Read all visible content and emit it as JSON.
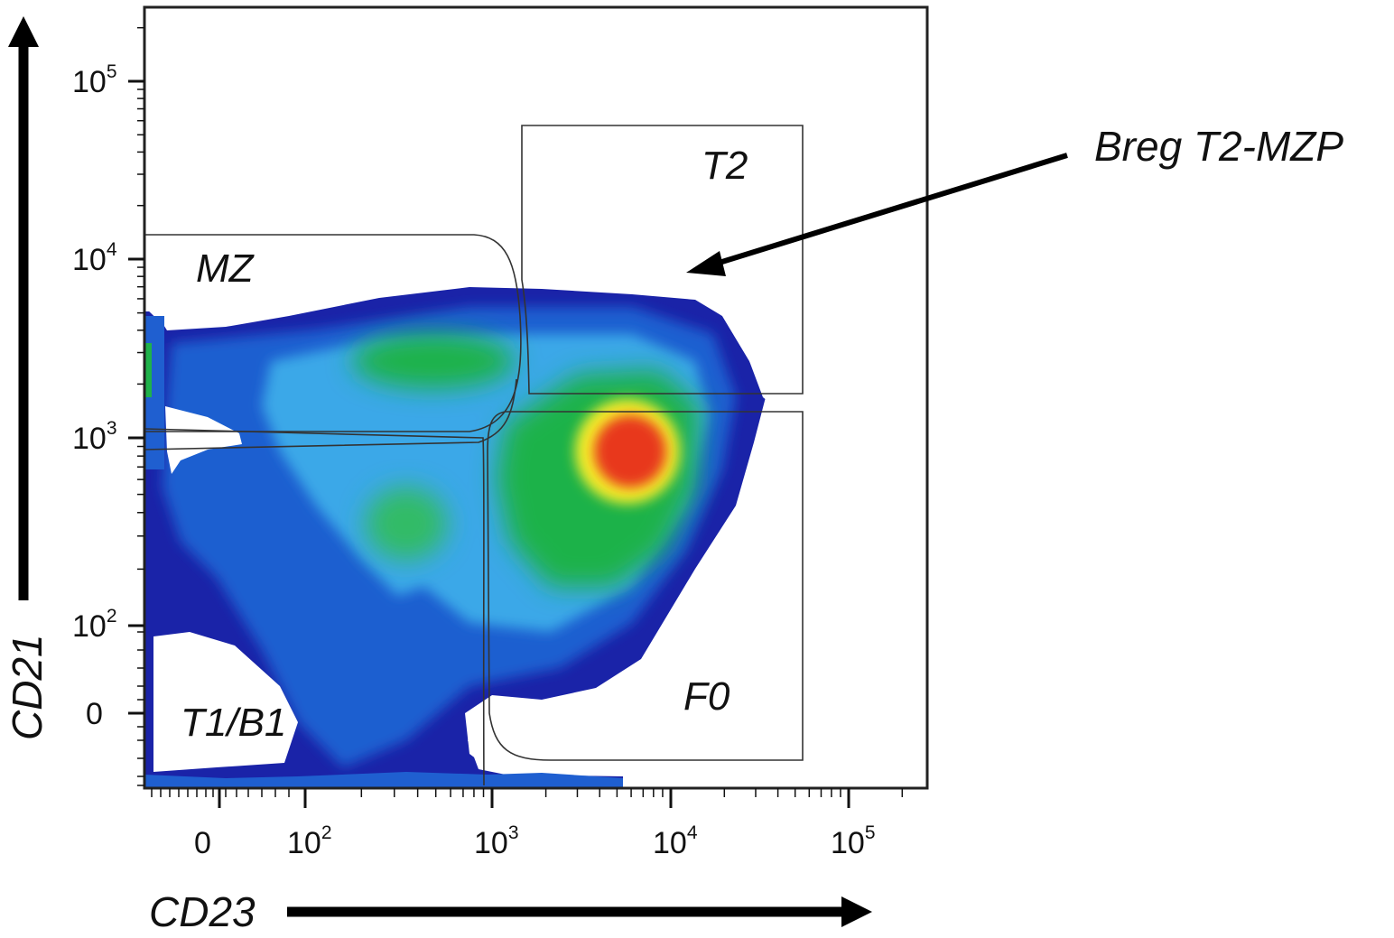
{
  "chart_data": {
    "type": "density",
    "xlabel": "CD23",
    "ylabel": "CD21",
    "x_scale": "biexponential",
    "y_scale": "biexponential",
    "x_ticks": [
      {
        "base": "0",
        "exp": ""
      },
      {
        "base": "10",
        "exp": "2"
      },
      {
        "base": "10",
        "exp": "3"
      },
      {
        "base": "10",
        "exp": "4"
      },
      {
        "base": "10",
        "exp": "5"
      }
    ],
    "y_ticks": [
      {
        "base": "0",
        "exp": ""
      },
      {
        "base": "10",
        "exp": "2"
      },
      {
        "base": "10",
        "exp": "3"
      },
      {
        "base": "10",
        "exp": "4"
      },
      {
        "base": "10",
        "exp": "5"
      }
    ],
    "gates": [
      {
        "name": "MZ",
        "label": "MZ"
      },
      {
        "name": "T2",
        "label": "T2"
      },
      {
        "name": "T1/B1",
        "label": "T1/B1"
      },
      {
        "name": "F0",
        "label": "F0"
      }
    ],
    "annotation": {
      "text": "Breg T2-MZP",
      "target_gate": "T2"
    },
    "peak": {
      "x": 6000,
      "y": 900
    },
    "colormap": [
      "#1a23a8",
      "#1f5fd0",
      "#3aa8e8",
      "#1fb24a",
      "#f6ee2a",
      "#e8381f"
    ]
  }
}
